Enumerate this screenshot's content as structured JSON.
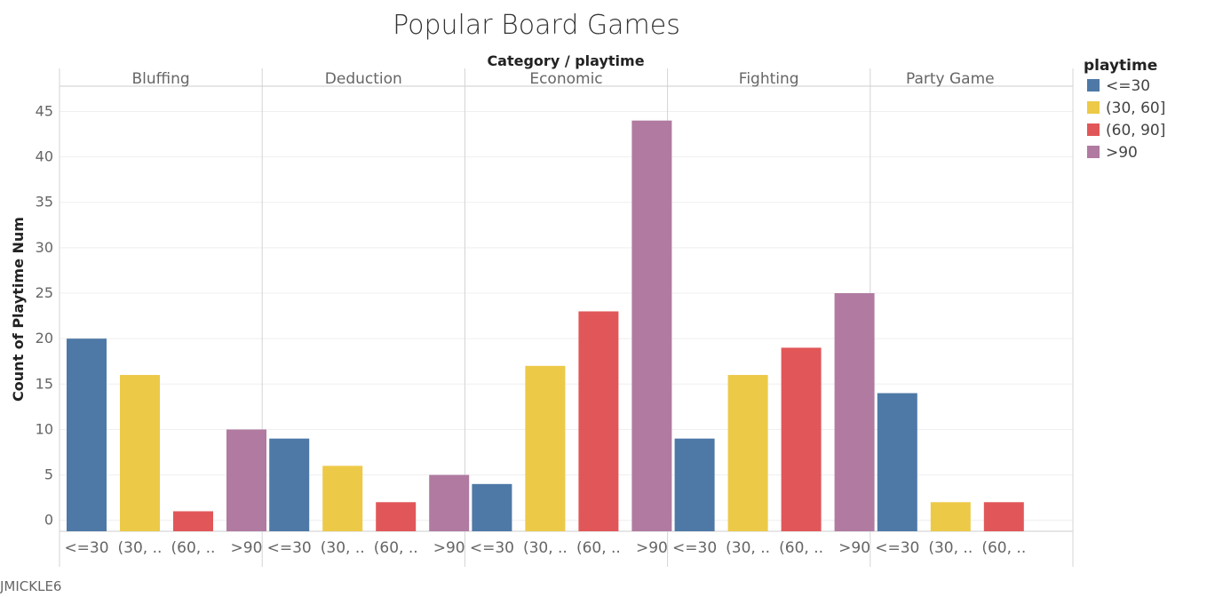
{
  "footer": "JMICKLE6",
  "chart_data": {
    "type": "bar",
    "title": "Popular Board Games",
    "header": "Category / playtime",
    "ylabel": "Count of Playtime Num",
    "ylim": [
      -1.2,
      47
    ],
    "yticks": [
      0,
      5,
      10,
      15,
      20,
      25,
      30,
      35,
      40,
      45
    ],
    "gridlines": true,
    "legend": {
      "title": "playtime",
      "position": "right",
      "items": [
        {
          "label": "<=30",
          "color": "#4e79a7"
        },
        {
          "label": "(30, 60]",
          "color": "#edc948"
        },
        {
          "label": "(60, 90]",
          "color": "#e15759"
        },
        {
          "label": ">90",
          "color": "#b07aa1"
        }
      ]
    },
    "panels": [
      {
        "name": "Bluffing",
        "bars": [
          {
            "label": "<=30",
            "value": 20,
            "color": "#4e79a7"
          },
          {
            "label": "(30, ..",
            "value": 16,
            "color": "#edc948"
          },
          {
            "label": "(60, ..",
            "value": 1,
            "color": "#e15759"
          },
          {
            "label": ">90",
            "value": 10,
            "color": "#b07aa1"
          }
        ]
      },
      {
        "name": "Deduction",
        "bars": [
          {
            "label": "<=30",
            "value": 9,
            "color": "#4e79a7"
          },
          {
            "label": "(30, ..",
            "value": 6,
            "color": "#edc948"
          },
          {
            "label": "(60, ..",
            "value": 2,
            "color": "#e15759"
          },
          {
            "label": ">90",
            "value": 5,
            "color": "#b07aa1"
          }
        ]
      },
      {
        "name": "Economic",
        "bars": [
          {
            "label": "<=30",
            "value": 4,
            "color": "#4e79a7"
          },
          {
            "label": "(30, ..",
            "value": 17,
            "color": "#edc948"
          },
          {
            "label": "(60, ..",
            "value": 23,
            "color": "#e15759"
          },
          {
            "label": ">90",
            "value": 44,
            "color": "#b07aa1"
          }
        ]
      },
      {
        "name": "Fighting",
        "bars": [
          {
            "label": "<=30",
            "value": 9,
            "color": "#4e79a7"
          },
          {
            "label": "(30, ..",
            "value": 16,
            "color": "#edc948"
          },
          {
            "label": "(60, ..",
            "value": 19,
            "color": "#e15759"
          },
          {
            "label": ">90",
            "value": 25,
            "color": "#b07aa1"
          }
        ]
      },
      {
        "name": "Party Game",
        "bars": [
          {
            "label": "<=30",
            "value": 14,
            "color": "#4e79a7"
          },
          {
            "label": "(30, ..",
            "value": 2,
            "color": "#edc948"
          },
          {
            "label": "(60, ..",
            "value": 2,
            "color": "#e15759"
          }
        ]
      }
    ]
  }
}
